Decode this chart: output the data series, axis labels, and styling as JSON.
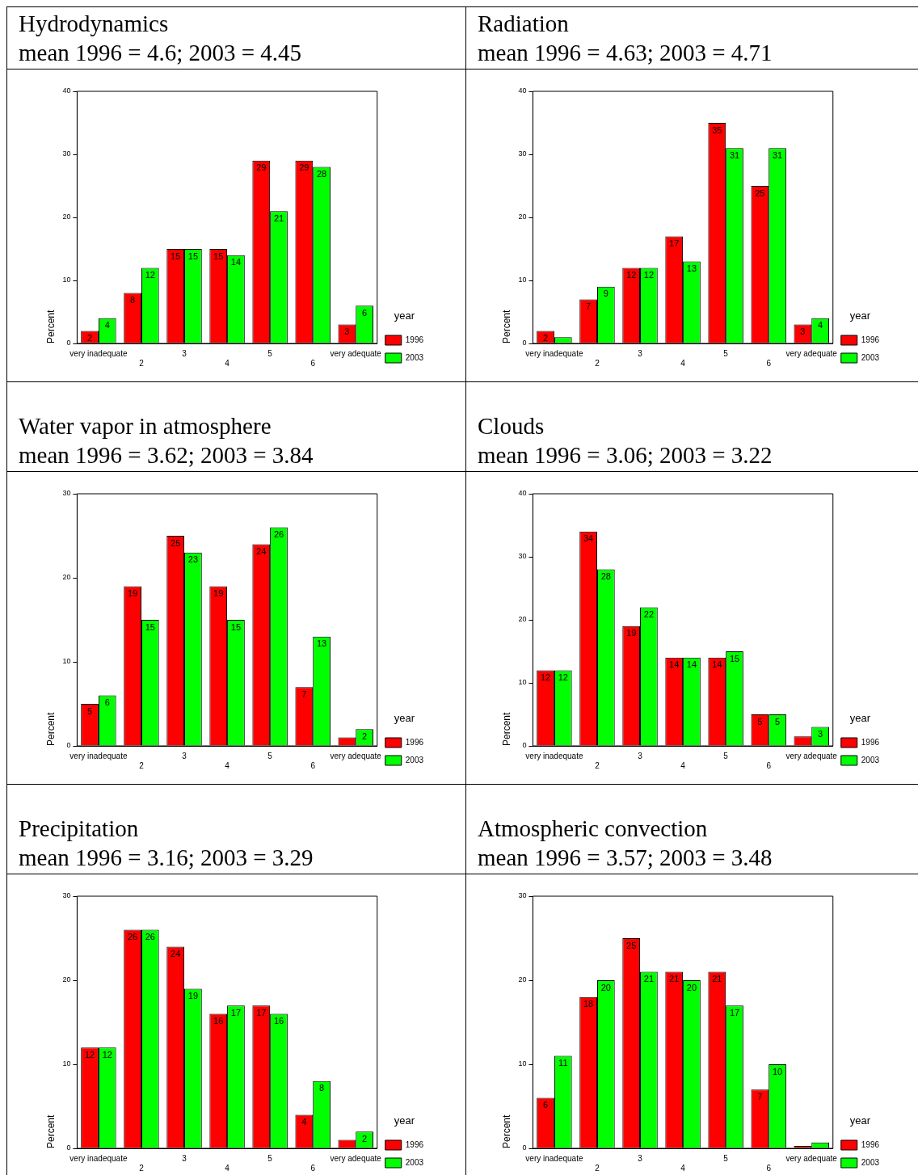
{
  "chart_data": [
    {
      "type": "bar",
      "title": "Hydrodynamics",
      "subtitle": "mean 1996 = 4.6; 2003 = 4.45",
      "ylabel": "Percent",
      "legend_title": "year",
      "legend": "bottom right",
      "categories": [
        "very inadequate",
        "2",
        "3",
        "4",
        "5",
        "6",
        "very adequate"
      ],
      "ylim": [
        0,
        40
      ],
      "yticks": [
        0,
        10,
        20,
        30,
        40
      ],
      "series": [
        {
          "name": "1996",
          "color": "#ff0000",
          "values": [
            2,
            8,
            15,
            15,
            29,
            29,
            3
          ],
          "value_labels": [
            "2",
            "8",
            "15",
            "15",
            "29",
            "29",
            "3"
          ]
        },
        {
          "name": "2003",
          "color": "#00ff00",
          "values": [
            4,
            12,
            15,
            14,
            21,
            28,
            6
          ],
          "value_labels": [
            "4",
            "12",
            "15",
            "14",
            "21",
            "28",
            "6"
          ]
        }
      ]
    },
    {
      "type": "bar",
      "title": "Radiation",
      "subtitle": "mean 1996 = 4.63; 2003 = 4.71",
      "ylabel": "Percent",
      "legend_title": "year",
      "legend": "bottom right",
      "categories": [
        "very inadequate",
        "2",
        "3",
        "4",
        "5",
        "6",
        "very adequate"
      ],
      "ylim": [
        0,
        40
      ],
      "yticks": [
        0,
        10,
        20,
        30,
        40
      ],
      "series": [
        {
          "name": "1996",
          "color": "#ff0000",
          "values": [
            2,
            7,
            12,
            17,
            35,
            25,
            3
          ],
          "value_labels": [
            "2",
            "7",
            "12",
            "17",
            "35",
            "25",
            "3"
          ]
        },
        {
          "name": "2003",
          "color": "#00ff00",
          "values": [
            1,
            9,
            12,
            13,
            31,
            31,
            4
          ],
          "value_labels": [
            null,
            "9",
            "12",
            "13",
            "31",
            "31",
            "4"
          ]
        }
      ]
    },
    {
      "type": "bar",
      "title": "Water vapor in atmosphere",
      "subtitle": "mean 1996 = 3.62; 2003 = 3.84",
      "ylabel": "Percent",
      "legend_title": "year",
      "legend": "bottom right",
      "categories": [
        "very inadequate",
        "2",
        "3",
        "4",
        "5",
        "6",
        "very adequate"
      ],
      "ylim": [
        0,
        30
      ],
      "yticks": [
        0,
        10,
        20,
        30
      ],
      "series": [
        {
          "name": "1996",
          "color": "#ff0000",
          "values": [
            5,
            19,
            25,
            19,
            24,
            7,
            1
          ],
          "value_labels": [
            "5",
            "19",
            "25",
            "19",
            "24",
            "7",
            null
          ]
        },
        {
          "name": "2003",
          "color": "#00ff00",
          "values": [
            6,
            15,
            23,
            15,
            26,
            13,
            2
          ],
          "value_labels": [
            "6",
            "15",
            "23",
            "15",
            "26",
            "13",
            "2"
          ]
        }
      ]
    },
    {
      "type": "bar",
      "title": "Clouds",
      "subtitle": "mean 1996 = 3.06; 2003 = 3.22",
      "ylabel": "Percent",
      "legend_title": "year",
      "legend": "bottom right",
      "categories": [
        "very inadequate",
        "2",
        "3",
        "4",
        "5",
        "6",
        "very adequate"
      ],
      "ylim": [
        0,
        40
      ],
      "yticks": [
        0,
        10,
        20,
        30,
        40
      ],
      "series": [
        {
          "name": "1996",
          "color": "#ff0000",
          "values": [
            12,
            34,
            19,
            14,
            14,
            5,
            1.5
          ],
          "value_labels": [
            "12",
            "34",
            "19",
            "14",
            "14",
            "5",
            null
          ]
        },
        {
          "name": "2003",
          "color": "#00ff00",
          "values": [
            12,
            28,
            22,
            14,
            15,
            5,
            3
          ],
          "value_labels": [
            "12",
            "28",
            "22",
            "14",
            "15",
            "5",
            "3"
          ]
        }
      ]
    },
    {
      "type": "bar",
      "title": "Precipitation",
      "subtitle": "mean 1996 = 3.16; 2003 = 3.29",
      "ylabel": "Percent",
      "legend_title": "year",
      "legend": "bottom right",
      "categories": [
        "very inadequate",
        "2",
        "3",
        "4",
        "5",
        "6",
        "very adequate"
      ],
      "ylim": [
        0,
        30
      ],
      "yticks": [
        0,
        10,
        20,
        30
      ],
      "series": [
        {
          "name": "1996",
          "color": "#ff0000",
          "values": [
            12,
            26,
            24,
            16,
            17,
            4,
            1
          ],
          "value_labels": [
            "12",
            "26",
            "24",
            "16",
            "17",
            "4",
            null
          ]
        },
        {
          "name": "2003",
          "color": "#00ff00",
          "values": [
            12,
            26,
            19,
            17,
            16,
            8,
            2
          ],
          "value_labels": [
            "12",
            "26",
            "19",
            "17",
            "16",
            "8",
            "2"
          ]
        }
      ]
    },
    {
      "type": "bar",
      "title": "Atmospheric convection",
      "subtitle": "mean 1996 = 3.57; 2003 = 3.48",
      "ylabel": "Percent",
      "legend_title": "year",
      "legend": "bottom right",
      "categories": [
        "very inadequate",
        "2",
        "3",
        "4",
        "5",
        "6",
        "very adequate"
      ],
      "ylim": [
        0,
        30
      ],
      "yticks": [
        0,
        10,
        20,
        30
      ],
      "series": [
        {
          "name": "1996",
          "color": "#ff0000",
          "values": [
            6,
            18,
            25,
            21,
            21,
            7,
            0.3
          ],
          "value_labels": [
            "6",
            "18",
            "25",
            "21",
            "21",
            "7",
            null
          ]
        },
        {
          "name": "2003",
          "color": "#00ff00",
          "values": [
            11,
            20,
            21,
            20,
            17,
            10,
            0.7
          ],
          "value_labels": [
            "11",
            "20",
            "21",
            "20",
            "17",
            "10",
            null
          ]
        }
      ]
    }
  ]
}
